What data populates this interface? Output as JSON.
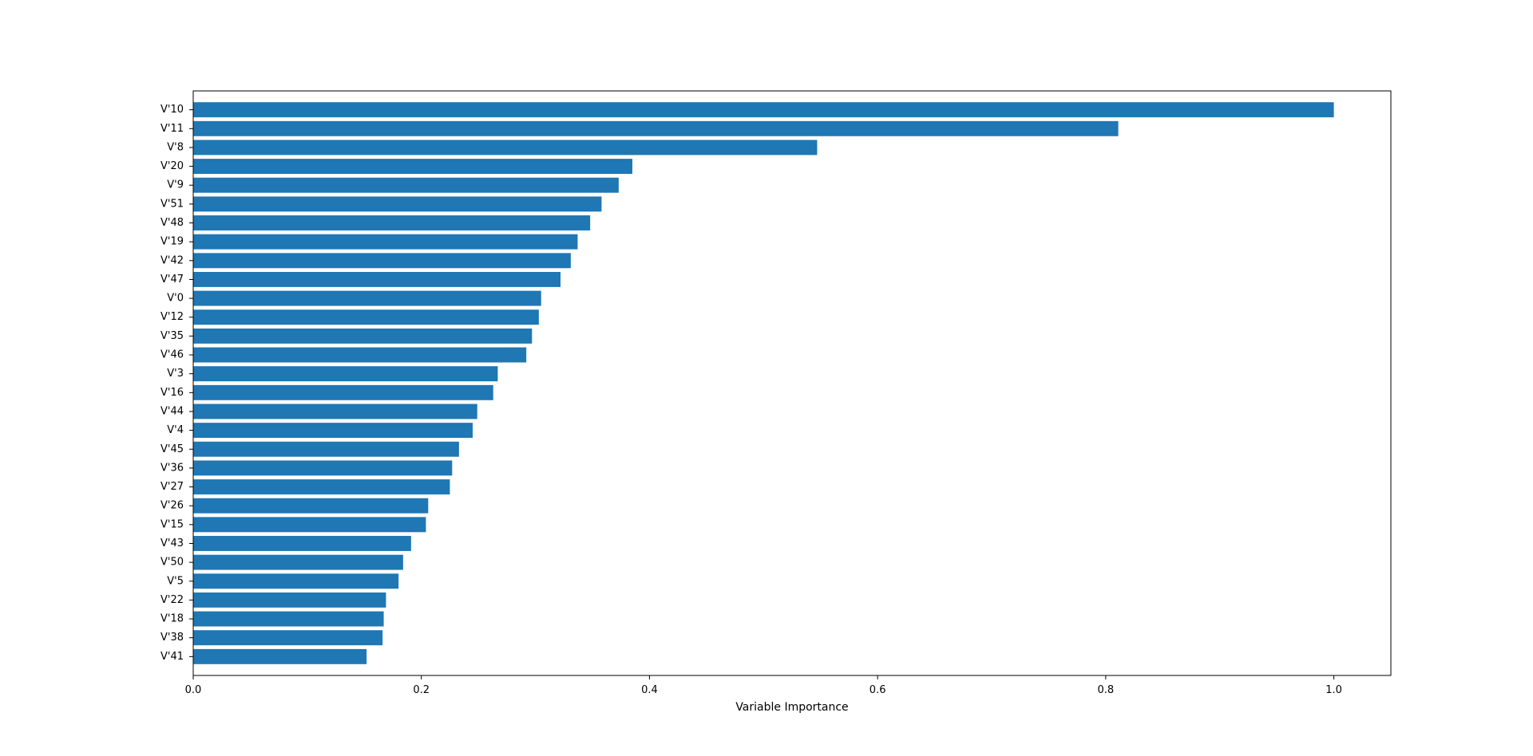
{
  "chart_data": {
    "type": "bar",
    "orientation": "horizontal",
    "title": "",
    "xlabel": "Variable Importance",
    "ylabel": "",
    "xlim": [
      0,
      1.05
    ],
    "x_ticks": [
      0.0,
      0.2,
      0.4,
      0.6,
      0.8,
      1.0
    ],
    "x_tick_labels": [
      "0.0",
      "0.2",
      "0.4",
      "0.6",
      "0.8",
      "1.0"
    ],
    "grid": false,
    "legend": "none",
    "bar_color": "#1f77b4",
    "categories": [
      "V'10",
      "V'11",
      "V'8",
      "V'20",
      "V'9",
      "V'51",
      "V'48",
      "V'19",
      "V'42",
      "V'47",
      "V'0",
      "V'12",
      "V'35",
      "V'46",
      "V'3",
      "V'16",
      "V'44",
      "V'4",
      "V'45",
      "V'36",
      "V'27",
      "V'26",
      "V'15",
      "V'43",
      "V'50",
      "V'5",
      "V'22",
      "V'18",
      "V'38",
      "V'41"
    ],
    "values": [
      1.0,
      0.811,
      0.547,
      0.385,
      0.373,
      0.358,
      0.348,
      0.337,
      0.331,
      0.322,
      0.305,
      0.303,
      0.297,
      0.292,
      0.267,
      0.263,
      0.249,
      0.245,
      0.233,
      0.227,
      0.225,
      0.206,
      0.204,
      0.191,
      0.184,
      0.18,
      0.169,
      0.167,
      0.166,
      0.152
    ]
  }
}
